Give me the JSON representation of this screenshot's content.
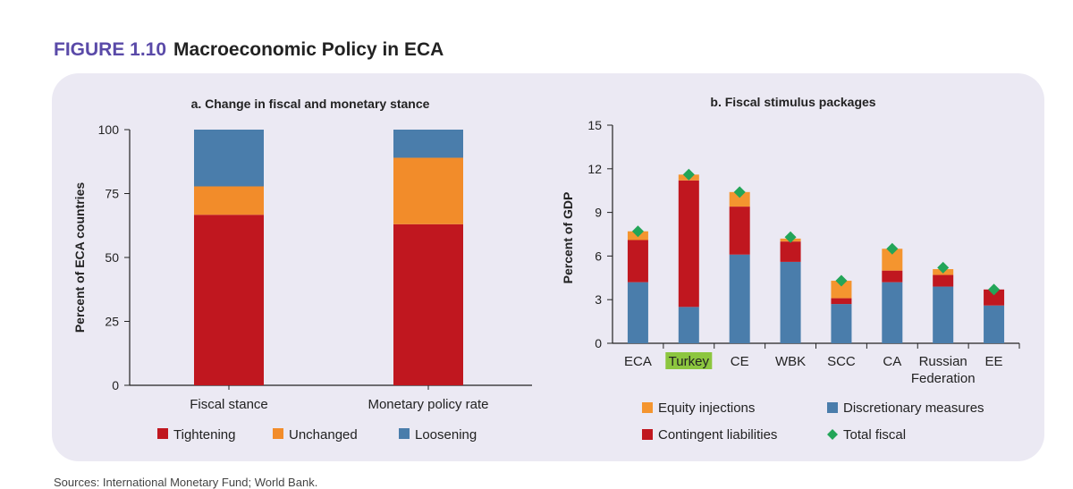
{
  "figure": {
    "number": "FIGURE 1.10",
    "title": "Macroeconomic Policy in ECA"
  },
  "source_text": "Sources: International Monetary Fund; World Bank.",
  "colors": {
    "tightening": "#c0171f",
    "unchanged": "#f28c2a",
    "loosening": "#4a7dab",
    "equity": "#f4952f",
    "contingent": "#c0171f",
    "discretionary": "#4a7dab",
    "total": "#23a558"
  },
  "chart_data": [
    {
      "type": "bar",
      "stacked": true,
      "title": "a. Change in fiscal and monetary stance",
      "xlabel": "",
      "ylabel": "Percent of ECA countries",
      "ylim": [
        0,
        100
      ],
      "yticks": [
        0,
        25,
        50,
        75,
        100
      ],
      "categories": [
        "Fiscal stance",
        "Monetary policy rate"
      ],
      "series": [
        {
          "name": "Tightening",
          "values": [
            66.7,
            63
          ]
        },
        {
          "name": "Unchanged",
          "values": [
            11.1,
            26
          ]
        },
        {
          "name": "Loosening",
          "values": [
            22.2,
            11
          ]
        }
      ]
    },
    {
      "type": "bar",
      "stacked": true,
      "title": "b. Fiscal stimulus packages",
      "xlabel": "",
      "ylabel": "Percent of GDP",
      "ylim": [
        0,
        15
      ],
      "yticks": [
        0,
        3,
        6,
        9,
        12,
        15
      ],
      "categories": [
        "ECA",
        "Turkey",
        "CE",
        "WBK",
        "SCC",
        "CA",
        "Russian Federation",
        "EE"
      ],
      "highlight_category": "Turkey",
      "series": [
        {
          "name": "Discretionary measures",
          "values": [
            4.2,
            2.5,
            6.1,
            5.6,
            2.7,
            4.2,
            3.9,
            2.6
          ]
        },
        {
          "name": "Contingent liabilities",
          "values": [
            2.9,
            8.7,
            3.3,
            1.4,
            0.4,
            0.8,
            0.8,
            1.1
          ]
        },
        {
          "name": "Equity injections",
          "values": [
            0.6,
            0.4,
            1.0,
            0.2,
            1.2,
            1.5,
            0.4,
            0.0
          ]
        }
      ],
      "markers": {
        "name": "Total fiscal",
        "values": [
          7.7,
          11.6,
          10.4,
          7.3,
          4.3,
          6.5,
          5.2,
          3.7
        ]
      },
      "legend": [
        "Equity injections",
        "Discretionary measures",
        "Contingent liabilities",
        "Total fiscal"
      ]
    }
  ]
}
